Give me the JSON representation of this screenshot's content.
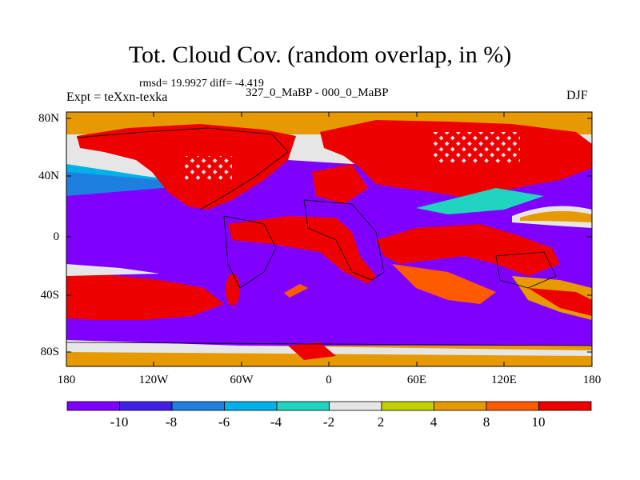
{
  "title": "Tot. Cloud Cov. (random overlap, in %)",
  "stats": "rmsd= 19.9927 diff= -4.419",
  "experiment": "Expt = teXxn-texka",
  "difference_label": "327_0_MaBP - 000_0_MaBP",
  "season": "DJF",
  "axes": {
    "lat_labels": [
      "80N",
      "40N",
      "0",
      "40S",
      "80S"
    ],
    "lon_labels": [
      "180",
      "120W",
      "60W",
      "0",
      "60E",
      "120E",
      "180"
    ]
  },
  "colorbar": {
    "labels": [
      "-10",
      "-8",
      "-6",
      "-4",
      "-2",
      "2",
      "4",
      "8",
      "10"
    ],
    "colors": [
      "#7f00ff",
      "#3f1fe6",
      "#1f7fe0",
      "#00b0e8",
      "#20d4c0",
      "#e6e6e6",
      "#c0d000",
      "#e69a00",
      "#ff5a00",
      "#ee0000"
    ]
  },
  "palette": {
    "strong_neg": "#7f00ff",
    "neg": "#3f1fe6",
    "mid_neg": "#1f7fe0",
    "light_neg": "#00b0e8",
    "small_neg": "#20d4c0",
    "neutral": "#e6e6e6",
    "small_pos": "#c0d000",
    "pos": "#e69a00",
    "strong_pos": "#ff5a00",
    "max_pos": "#ee0000"
  }
}
